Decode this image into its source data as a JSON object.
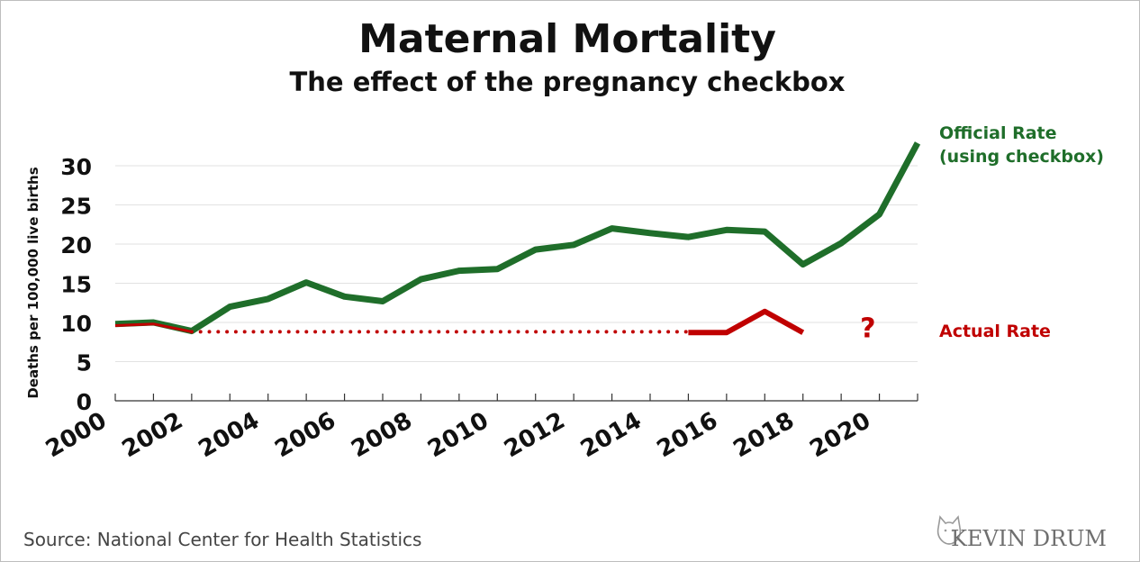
{
  "chart_data": {
    "type": "line",
    "title": "Maternal Mortality",
    "subtitle": "The effect of the pregnancy checkbox",
    "ylabel": "Deaths per 100,000 live births",
    "ylim": [
      0,
      32
    ],
    "yticks": [
      0,
      5,
      10,
      15,
      20,
      25,
      30
    ],
    "xlim": [
      2000,
      2021
    ],
    "xticks": [
      2000,
      2002,
      2004,
      2006,
      2008,
      2010,
      2012,
      2014,
      2016,
      2018,
      2020
    ],
    "grid": true,
    "series": [
      {
        "name": "Official Rate (using checkbox)",
        "label_lines": [
          "Official Rate",
          "(using checkbox)"
        ],
        "color": "#1f6e2a",
        "style": "solid",
        "x": [
          2000,
          2001,
          2002,
          2003,
          2004,
          2005,
          2006,
          2007,
          2008,
          2009,
          2010,
          2011,
          2012,
          2013,
          2014,
          2015,
          2016,
          2017,
          2018,
          2019,
          2020,
          2021
        ],
        "values": [
          9.8,
          10.0,
          8.9,
          12.0,
          13.0,
          15.1,
          13.3,
          12.7,
          15.5,
          16.6,
          16.8,
          19.3,
          19.9,
          22.0,
          21.4,
          20.9,
          21.8,
          21.6,
          17.4,
          20.1,
          23.8,
          32.9
        ]
      },
      {
        "name": "Actual Rate",
        "label_lines": [
          "Actual Rate"
        ],
        "color": "#c00000",
        "segments": [
          {
            "style": "solid",
            "x": [
              2000,
              2001,
              2002
            ],
            "values": [
              9.6,
              9.8,
              8.8
            ]
          },
          {
            "style": "dotted",
            "x": [
              2002,
              2015
            ],
            "values": [
              8.8,
              8.8
            ]
          },
          {
            "style": "solid",
            "x": [
              2015,
              2016,
              2017,
              2018
            ],
            "values": [
              8.7,
              8.7,
              11.4,
              8.7
            ]
          }
        ]
      }
    ],
    "annotations": [
      {
        "text": "?",
        "x": 2019.7,
        "y": 9.5,
        "color": "#c00000"
      }
    ]
  },
  "source": "Source: National Center for Health Statistics",
  "brand": {
    "text": "KEVIN DRUM"
  }
}
